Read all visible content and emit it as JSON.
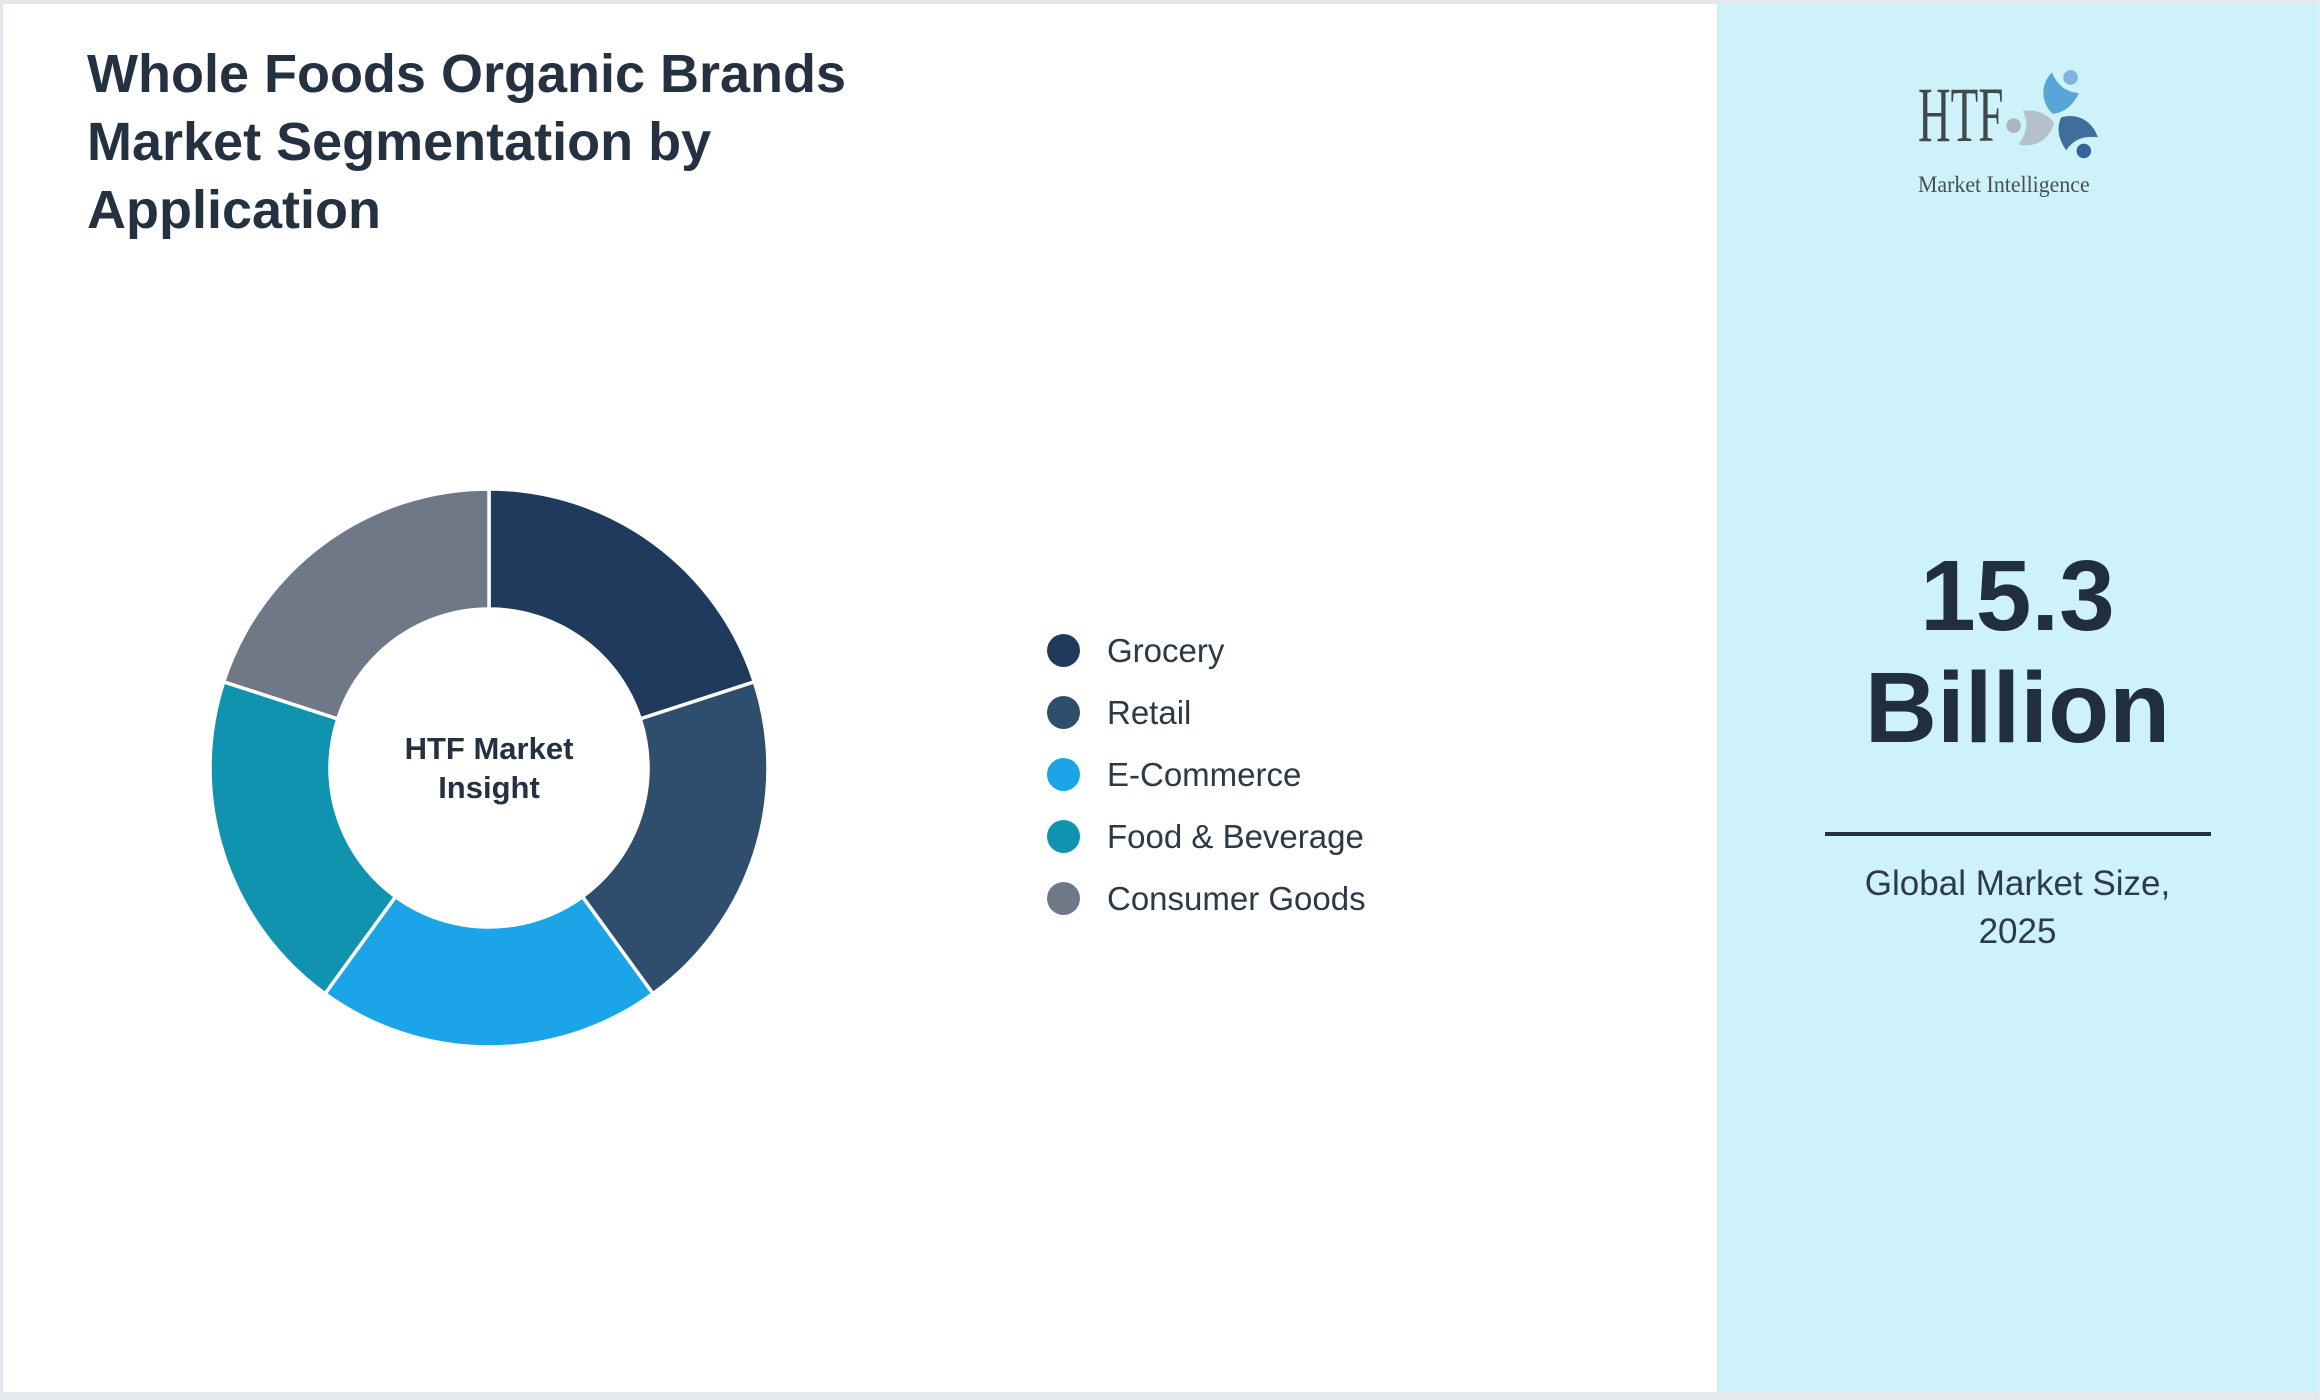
{
  "page": {
    "background": "#ffffff",
    "border_color": "#e4e7eb"
  },
  "header": {
    "title": "Whole Foods Organic Brands Market Segmentation by Application",
    "title_color": "#243140"
  },
  "chart_data": {
    "type": "pie",
    "subtype": "donut",
    "hole_ratio": 0.57,
    "direction": "clockwise",
    "rotation_deg": 0,
    "legend_position": "right",
    "center_text": "HTF Market Insight",
    "slice_border_color": "#ffffff",
    "labels": [
      "Grocery",
      "Retail",
      "E-Commerce",
      "Food & Beverage",
      "Consumer Goods"
    ],
    "values": [
      20,
      20,
      20,
      20,
      20
    ],
    "colors": [
      "#1f3a5c",
      "#2f4d6c",
      "#1ba5e8",
      "#0f93af",
      "#6f7887"
    ]
  },
  "sidebar": {
    "background": "#cdf2fa",
    "divider_color": "#24303e",
    "logo": {
      "brand": "HTF",
      "tagline": "Market Intelligence",
      "icon": "htf-swirl-logo-icon",
      "icon_colors": [
        "#59a4d8",
        "#3e6f9c",
        "#b4c0ca"
      ]
    },
    "market_size_value": "15.3 Billion",
    "market_size_caption": "Global Market Size, 2025"
  }
}
